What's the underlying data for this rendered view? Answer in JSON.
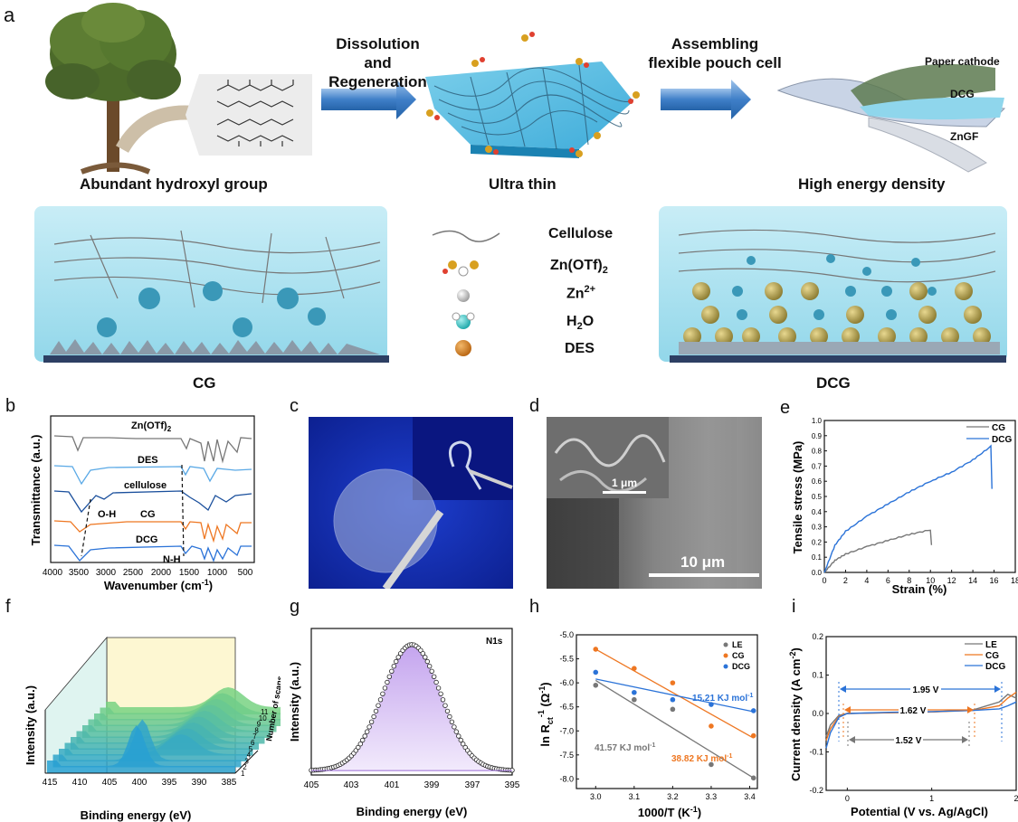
{
  "panel_a": {
    "label": "a",
    "step1": "Dissolution\nand Regeneration",
    "step1_line1": "Dissolution",
    "step1_line2": "and Regeneration",
    "step2_line1": "Assembling",
    "step2_line2": "flexible pouch cell",
    "caption_left": "Abundant hydroxyl group",
    "caption_mid": "Ultra thin",
    "caption_right": "High energy density",
    "cell_labels": [
      "Paper  cathode",
      "DCG",
      "ZnGF"
    ],
    "legend": [
      "Cellulose",
      "Zn(OTf)",
      "Zn",
      "H",
      "DES"
    ],
    "legend_sub": {
      "znotf": "2",
      "zn_sup": "2+",
      "h2o_sub": "2",
      "h2o_tail": "O"
    },
    "cg": "CG",
    "dcg": "DCG"
  },
  "panel_b": {
    "label": "b",
    "ylabel": "Transmittance (a.u.)",
    "xlabel_main": "Wavenumber (cm",
    "xlabel_sup": "-1",
    "xlabel_tail": ")",
    "xticks": [
      "4000",
      "3500",
      "3000",
      "2500",
      "2000",
      "1500",
      "1000",
      "500"
    ],
    "series": [
      "Zn(OTf)",
      "DES",
      "cellulose",
      "CG",
      "DCG"
    ],
    "annotations": [
      "O-H",
      "N-H"
    ],
    "colors": [
      "#777777",
      "#5aa9e6",
      "#1a4f9c",
      "#ee7722",
      "#2b73d8"
    ]
  },
  "panel_c": {
    "label": "c"
  },
  "panel_d": {
    "label": "d",
    "scale_inset": "1 μm",
    "scale_main": "10 μm"
  },
  "panel_e": {
    "label": "e",
    "ylabel": "Tensile stress (MPa)",
    "xlabel": "Strain (%)",
    "xticks": [
      "0",
      "2",
      "4",
      "6",
      "8",
      "10",
      "12",
      "14",
      "16",
      "18"
    ],
    "yticks": [
      "0.0",
      "0.1",
      "0.2",
      "0.3",
      "0.4",
      "0.5",
      "0.6",
      "0.7",
      "0.8",
      "0.9",
      "1.0"
    ],
    "legend": [
      "CG",
      "DCG"
    ]
  },
  "panel_f": {
    "label": "f",
    "ylabel": "Intensity (a.u.)",
    "xlabel": "Binding energy (eV)",
    "xticks": [
      "415",
      "410",
      "405",
      "400",
      "395",
      "390",
      "385"
    ],
    "scan_axis": "Number of scans",
    "scans": [
      "1",
      "2",
      "3",
      "4",
      "5",
      "6",
      "7",
      "8",
      "9",
      "10",
      "11"
    ]
  },
  "panel_g": {
    "label": "g",
    "ylabel": "Intensity (a.u.)",
    "xlabel": "Binding energy (eV)",
    "xticks": [
      "405",
      "403",
      "401",
      "399",
      "397",
      "395"
    ],
    "tag": "N1s"
  },
  "panel_h": {
    "label": "h",
    "ylabel_main": "ln R",
    "ylabel_sub": "ct",
    "ylabel_sup": "-1",
    "ylabel_unit": " (Ω",
    "ylabel_unit_sup": "-1",
    "ylabel_close": ")",
    "xlabel_main": "1000/T (K",
    "xlabel_sup": "-1",
    "xlabel_close": ")",
    "xticks": [
      "3.0",
      "3.1",
      "3.2",
      "3.3",
      "3.4"
    ],
    "yticks": [
      "-5.0",
      "-5.5",
      "-6.0",
      "-6.5",
      "-7.0",
      "-7.5",
      "-8.0"
    ],
    "legend": [
      "LE",
      "CG",
      "DCG"
    ],
    "ea_dcg": "15.21 KJ mol",
    "ea_le": "41.57 KJ mol",
    "ea_cg": "38.82 KJ mol",
    "ea_sup": "-1"
  },
  "panel_i": {
    "label": "i",
    "ylabel_main": "Current density (A cm",
    "ylabel_sup": "-2",
    "ylabel_close": ")",
    "xlabel": "Potential (V vs. Ag/AgCl)",
    "xticks": [
      "0",
      "1",
      "2"
    ],
    "yticks": [
      "0.2",
      "0.1",
      "0.0",
      "-0.1",
      "-0.2"
    ],
    "legend": [
      "LE",
      "CG",
      "DCG"
    ],
    "windows": [
      "1.95 V",
      "1.62 V",
      "1.52 V"
    ]
  },
  "chart_data": [
    {
      "type": "line",
      "panel": "e",
      "xlabel": "Strain (%)",
      "ylabel": "Tensile stress (MPa)",
      "xlim": [
        0,
        18
      ],
      "ylim": [
        0,
        1.0
      ],
      "series": [
        {
          "name": "CG",
          "color": "#777777",
          "x": [
            0,
            1,
            2,
            4,
            6,
            8,
            10,
            10.1
          ],
          "values": [
            0,
            0.08,
            0.12,
            0.17,
            0.21,
            0.25,
            0.28,
            0.18
          ]
        },
        {
          "name": "DCG",
          "color": "#2b73d8",
          "x": [
            0,
            1,
            2,
            4,
            6,
            8,
            10,
            12,
            14,
            15.7,
            15.8
          ],
          "values": [
            0,
            0.18,
            0.27,
            0.37,
            0.45,
            0.53,
            0.6,
            0.66,
            0.74,
            0.83,
            0.55
          ]
        }
      ]
    },
    {
      "type": "scatter",
      "panel": "h",
      "xlabel": "1000/T (K-1)",
      "ylabel": "ln Rct-1 (Ω-1)",
      "xlim": [
        2.95,
        3.42
      ],
      "ylim": [
        -8.2,
        -5.0
      ],
      "series": [
        {
          "name": "LE",
          "color": "#777777",
          "x": [
            3.0,
            3.1,
            3.2,
            3.3,
            3.41
          ],
          "values": [
            -6.05,
            -6.35,
            -6.55,
            -7.7,
            -7.98
          ]
        },
        {
          "name": "CG",
          "color": "#ee7722",
          "x": [
            3.0,
            3.1,
            3.2,
            3.3,
            3.41
          ],
          "values": [
            -5.3,
            -5.7,
            -6.0,
            -6.9,
            -7.1
          ]
        },
        {
          "name": "DCG",
          "color": "#2b73d8",
          "x": [
            3.0,
            3.1,
            3.2,
            3.3,
            3.41
          ],
          "values": [
            -5.78,
            -6.2,
            -6.35,
            -6.45,
            -6.58
          ]
        }
      ],
      "fits": [
        {
          "name": "LE",
          "x": [
            3.0,
            3.41
          ],
          "values": [
            -5.95,
            -7.98
          ]
        },
        {
          "name": "CG",
          "x": [
            3.0,
            3.41
          ],
          "values": [
            -5.3,
            -7.15
          ]
        },
        {
          "name": "DCG",
          "x": [
            3.0,
            3.41
          ],
          "values": [
            -5.92,
            -6.6
          ]
        }
      ]
    },
    {
      "type": "line",
      "panel": "i",
      "xlabel": "Potential (V vs. Ag/AgCl)",
      "ylabel": "Current density (A cm-2)",
      "xlim": [
        -0.25,
        2.0
      ],
      "ylim": [
        -0.2,
        0.2
      ],
      "series": [
        {
          "name": "LE",
          "color": "#777777",
          "x": [
            -0.25,
            -0.2,
            -0.1,
            0.0,
            0.5,
            1.0,
            1.5,
            1.8,
            1.9,
            2.0
          ],
          "values": [
            -0.06,
            -0.03,
            -0.005,
            0.0,
            0.002,
            0.004,
            0.01,
            0.03,
            0.05,
            0.04
          ]
        },
        {
          "name": "CG",
          "color": "#ee7722",
          "x": [
            -0.25,
            -0.2,
            -0.1,
            0.0,
            0.5,
            1.0,
            1.5,
            1.8,
            1.9,
            2.0
          ],
          "values": [
            -0.07,
            -0.04,
            -0.008,
            0.0,
            0.002,
            0.004,
            0.008,
            0.02,
            0.04,
            0.055
          ]
        },
        {
          "name": "DCG",
          "color": "#2b73d8",
          "x": [
            -0.25,
            -0.2,
            -0.1,
            0.0,
            0.5,
            1.0,
            1.5,
            1.8,
            1.9,
            2.0
          ],
          "values": [
            -0.09,
            -0.05,
            -0.01,
            0.0,
            0.003,
            0.005,
            0.008,
            0.012,
            0.02,
            0.03
          ]
        }
      ]
    },
    {
      "type": "line",
      "panel": "g",
      "xlabel": "Binding energy (eV)",
      "ylabel": "Intensity (a.u.)",
      "xlim": [
        405,
        395
      ],
      "peak_center": 400.0
    }
  ]
}
